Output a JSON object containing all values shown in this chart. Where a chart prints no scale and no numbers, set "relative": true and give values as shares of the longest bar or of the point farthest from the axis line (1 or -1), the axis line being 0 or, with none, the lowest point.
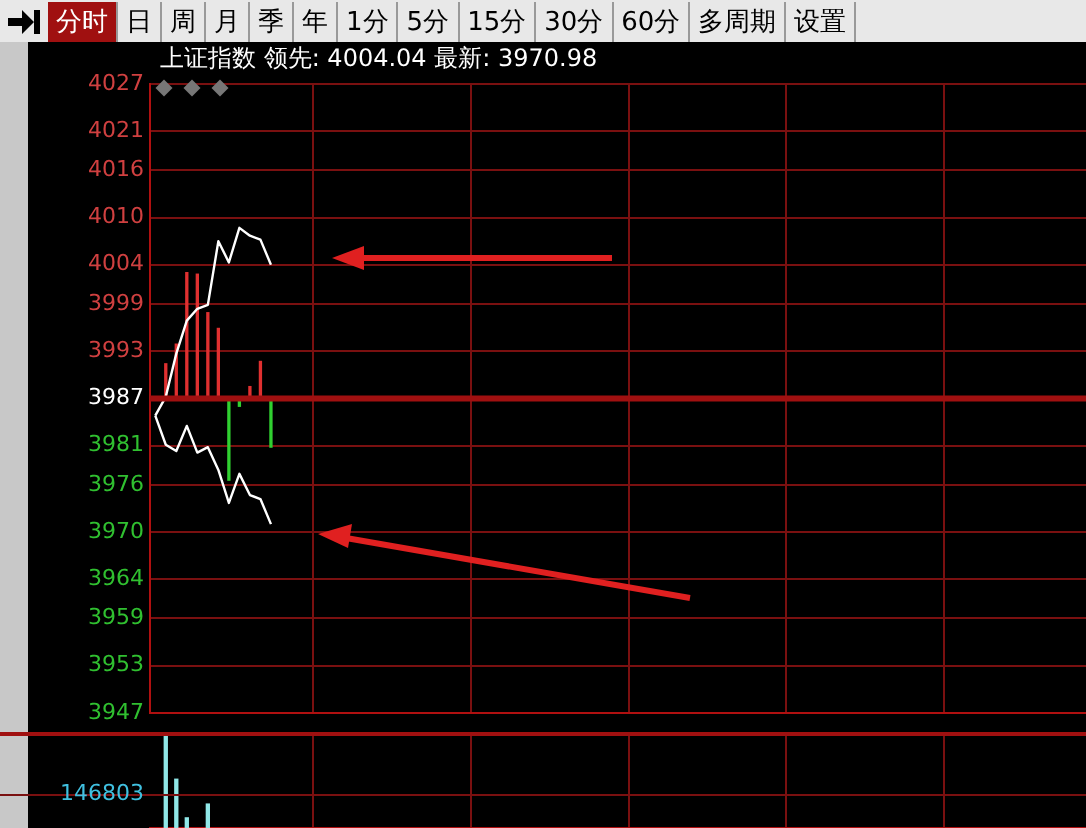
{
  "chart_data": [
    {
      "type": "line",
      "title": "上证指数",
      "subtitle": "领先: 4004.04 最新: 3970.98",
      "annotations": [
        "分时",
        "日",
        "周",
        "月",
        "季",
        "年",
        "1分",
        "5分",
        "15分",
        "30分",
        "60分",
        "多周期",
        "设置"
      ],
      "categories": [
        null,
        null,
        null,
        null,
        null,
        null,
        null,
        null,
        null,
        null,
        null,
        null,
        null,
        null,
        null,
        null,
        null,
        null,
        null,
        null,
        null,
        null,
        null,
        null,
        null,
        null,
        null,
        null,
        null,
        null,
        null,
        null,
        null,
        null,
        null,
        null,
        null,
        null,
        null,
        null,
        null,
        null,
        null,
        null,
        null,
        null,
        null,
        null,
        null,
        null,
        null,
        null,
        null,
        null,
        null,
        null,
        null,
        null,
        null,
        null,
        null,
        null,
        null,
        null,
        null,
        null,
        null,
        null,
        null,
        null,
        null,
        null,
        null,
        null,
        null,
        null,
        null,
        null,
        null,
        null,
        null,
        null,
        null,
        null,
        null,
        null,
        null,
        null,
        null
      ],
      "series": [
        {
          "type": "line",
          "color": "#ffffff",
          "values": [
            3984.8,
            3987.2,
            3992.7,
            3996.9,
            3998.4,
            3998.9,
            4007.0,
            4004.3,
            4008.7,
            4007.7,
            4007.2,
            4004,
            null,
            null,
            null,
            null,
            null,
            null,
            null,
            null,
            null,
            null,
            null,
            null,
            null,
            null,
            null,
            null,
            null,
            null,
            null,
            null,
            null,
            null,
            null,
            null,
            null,
            null,
            null,
            null,
            null,
            null,
            null,
            null,
            null,
            null,
            null,
            null,
            null,
            null,
            null,
            null,
            null,
            null,
            null,
            null,
            null,
            null,
            null,
            null,
            null,
            null,
            null,
            null,
            null,
            null,
            null,
            null,
            null,
            null,
            null,
            null,
            null,
            null,
            null,
            null,
            null,
            null,
            null,
            null,
            null,
            null,
            null,
            null,
            null,
            null,
            null,
            null,
            null
          ]
        },
        {
          "type": "line",
          "color": "#ffffff",
          "values": [
            3984.8,
            3981.1,
            3980.3,
            3983.5,
            3980.1,
            3980.8,
            3977.9,
            3973.7,
            3977.4,
            3974.7,
            3974.2,
            3971,
            null,
            null,
            null,
            null,
            null,
            null,
            null,
            null,
            null,
            null,
            null,
            null,
            null,
            null,
            null,
            null,
            null,
            null,
            null,
            null,
            null,
            null,
            null,
            null,
            null,
            null,
            null,
            null,
            null,
            null,
            null,
            null,
            null,
            null,
            null,
            null,
            null,
            null,
            null,
            null,
            null,
            null,
            null,
            null,
            null,
            null,
            null,
            null,
            null,
            null,
            null,
            null,
            null,
            null,
            null,
            null,
            null,
            null,
            null,
            null,
            null,
            null,
            null,
            null,
            null,
            null,
            null,
            null,
            null,
            null,
            null,
            null,
            null,
            null,
            null,
            null,
            null
          ]
        },
        {
          "type": "bar",
          "base": [
            null,
            3987,
            3987,
            3987,
            3987,
            3987,
            3987,
            3987,
            3987,
            3987,
            3987,
            3987,
            null,
            null,
            null,
            null,
            null,
            null,
            null,
            null,
            null,
            null,
            null,
            null,
            null,
            null,
            null,
            null,
            null,
            null,
            null,
            null,
            null,
            null,
            null,
            null,
            null,
            null,
            null,
            null,
            null,
            null,
            null,
            null,
            null,
            null,
            null,
            null,
            null,
            null,
            null,
            null,
            null,
            null,
            null,
            null,
            null,
            null,
            null,
            null,
            null,
            null,
            null,
            null,
            null,
            null,
            null,
            null,
            null,
            null,
            null,
            null,
            null,
            null,
            null,
            null,
            null,
            null,
            null,
            null,
            null,
            null,
            null,
            null,
            null,
            null,
            null,
            null,
            null
          ],
          "values": [
            null,
            4.4,
            6.9,
            16,
            15.8,
            10.9,
            8.9,
            -10.4,
            -1,
            1.5,
            4.7,
            -6.2,
            null,
            null,
            null,
            null,
            null,
            null,
            null,
            null,
            null,
            null,
            null,
            null,
            null,
            null,
            null,
            null,
            null,
            null,
            null,
            null,
            null,
            null,
            null,
            null,
            null,
            null,
            null,
            null,
            null,
            null,
            null,
            null,
            null,
            null,
            null,
            null,
            null,
            null,
            null,
            null,
            null,
            null,
            null,
            null,
            null,
            null,
            null,
            null,
            null,
            null,
            null,
            null,
            null,
            null,
            null,
            null,
            null,
            null,
            null,
            null,
            null,
            null,
            null,
            null,
            null,
            null,
            null,
            null,
            null,
            null,
            null,
            null,
            null,
            null,
            null,
            null,
            null
          ],
          "colors": [
            "#e03030",
            "#e03030",
            "#e03030",
            "#e03030",
            "#e03030",
            "#e03030",
            "#e03030",
            "#30d030",
            "#30d030",
            "#e03030",
            "#e03030",
            "#30d030",
            null,
            null,
            null,
            null,
            null,
            null,
            null,
            null,
            null,
            null,
            null,
            null,
            null,
            null,
            null,
            null,
            null,
            null,
            null,
            null,
            null,
            null,
            null,
            null,
            null,
            null,
            null,
            null,
            null,
            null,
            null,
            null,
            null,
            null,
            null,
            null,
            null,
            null,
            null,
            null,
            null,
            null,
            null,
            null,
            null,
            null,
            null,
            null,
            null,
            null,
            null,
            null,
            null,
            null,
            null,
            null,
            null,
            null,
            null,
            null,
            null,
            null,
            null,
            null,
            null,
            null,
            null,
            null,
            null,
            null,
            null,
            null,
            null,
            null,
            null,
            null,
            null
          ]
        }
      ],
      "ylim": [
        3947,
        4027
      ],
      "yticks": [
        3947,
        3953,
        3959,
        3964,
        3970,
        3976,
        3981,
        3987,
        3993,
        3999,
        4004,
        4010,
        4016,
        4021,
        4027
      ],
      "ref_lines": [
        {
          "axis": "y",
          "value": 3987,
          "color": "#a01010"
        }
      ],
      "grid": true
    },
    {
      "type": "bar",
      "relative": true,
      "grid": true,
      "annotations": [
        "146803"
      ],
      "categories": [
        null,
        null,
        null,
        null,
        null,
        null,
        null,
        null,
        null,
        null,
        null,
        null,
        null,
        null,
        null,
        null,
        null,
        null,
        null,
        null,
        null,
        null,
        null,
        null,
        null,
        null,
        null,
        null,
        null,
        null,
        null,
        null,
        null,
        null,
        null,
        null,
        null,
        null,
        null,
        null,
        null,
        null,
        null,
        null,
        null,
        null,
        null,
        null,
        null,
        null,
        null,
        null,
        null,
        null,
        null,
        null,
        null,
        null,
        null,
        null,
        null,
        null,
        null,
        null,
        null,
        null,
        null,
        null,
        null,
        null,
        null,
        null,
        null,
        null,
        null,
        null,
        null,
        null,
        null,
        null,
        null,
        null,
        null,
        null,
        null,
        null,
        null,
        null,
        null
      ],
      "values": [
        null,
        1,
        0.53,
        0.11,
        null,
        0.26,
        null,
        null,
        null,
        null,
        null,
        null,
        null,
        null,
        null,
        null,
        null,
        null,
        null,
        null,
        null,
        null,
        null,
        null,
        null,
        null,
        null,
        null,
        null,
        null,
        null,
        null,
        null,
        null,
        null,
        null,
        null,
        null,
        null,
        null,
        null,
        null,
        null,
        null,
        null,
        null,
        null,
        null,
        null,
        null,
        null,
        null,
        null,
        null,
        null,
        null,
        null,
        null,
        null,
        null,
        null,
        null,
        null,
        null,
        null,
        null,
        null,
        null,
        null,
        null,
        null,
        null,
        null,
        null,
        null,
        null,
        null,
        null,
        null,
        null,
        null,
        null,
        null,
        null,
        null,
        null,
        null,
        null,
        null
      ],
      "color": "#90e8e8"
    }
  ]
}
